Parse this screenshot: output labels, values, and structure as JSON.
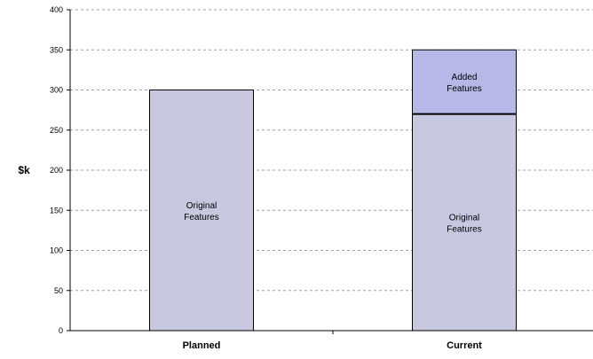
{
  "chart_data": {
    "type": "bar",
    "stacked": true,
    "title": "",
    "xlabel": "",
    "ylabel": "$k",
    "ylim": [
      0,
      400
    ],
    "yticks": [
      0,
      50,
      100,
      150,
      200,
      250,
      300,
      350,
      400
    ],
    "grid": "horizontal dashed",
    "categories": [
      "Planned",
      "Current"
    ],
    "series": [
      {
        "name": "",
        "values": [
          300,
          270
        ],
        "segment_label": [
          "Original",
          "Features"
        ],
        "color": "#c8c8e0"
      },
      {
        "name": "",
        "values": [
          0,
          80
        ],
        "segment_label": [
          "Added",
          "Features"
        ],
        "color": "#b7b7e8"
      }
    ]
  }
}
